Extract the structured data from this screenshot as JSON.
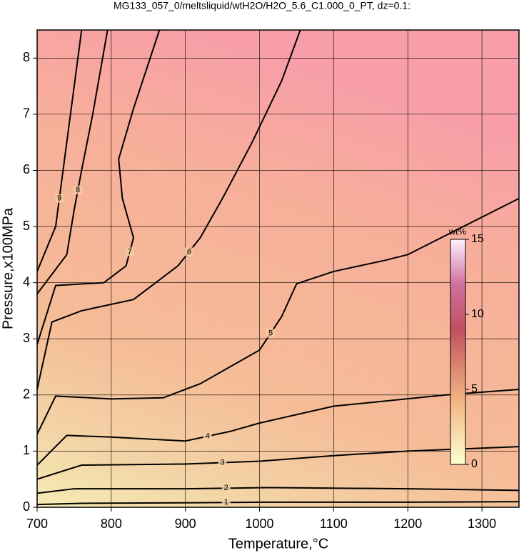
{
  "chart_data": {
    "type": "contour",
    "title": "MG133_057_0/meltsliquid/wtH2O/H2O_5.6_C1.000_0_PT, dz=0.1:",
    "x_label": "Temperature,°C",
    "y_label": "Pressure,x100MPa",
    "xlim": [
      700,
      1350
    ],
    "ylim": [
      0,
      8.5
    ],
    "xticks": [
      700,
      800,
      900,
      1000,
      1100,
      1200,
      1300
    ],
    "yticks": [
      0,
      1,
      2,
      3,
      4,
      5,
      6,
      7,
      8
    ],
    "grid": true,
    "line_color": "#000000",
    "contours": [
      {
        "level": 1,
        "x": [
          700,
          760,
          900,
          1010,
          1200,
          1350
        ],
        "y": [
          0.05,
          0.07,
          0.08,
          0.09,
          0.09,
          0.1
        ]
      },
      {
        "level": 2,
        "x": [
          700,
          750,
          900,
          1010,
          1200,
          1350
        ],
        "y": [
          0.25,
          0.33,
          0.33,
          0.35,
          0.33,
          0.3
        ]
      },
      {
        "level": 3,
        "x": [
          700,
          760,
          900,
          1000,
          1100,
          1200,
          1350
        ],
        "y": [
          0.5,
          0.75,
          0.77,
          0.82,
          0.92,
          1.0,
          1.08
        ]
      },
      {
        "level": 4,
        "x": [
          700,
          740,
          800,
          900,
          960,
          1000,
          1100,
          1250,
          1350
        ],
        "y": [
          0.75,
          1.28,
          1.25,
          1.18,
          1.35,
          1.5,
          1.8,
          2.0,
          2.1
        ]
      },
      {
        "level": 5,
        "x": [
          700,
          725,
          800,
          870,
          920,
          1000,
          1030,
          1050,
          1100,
          1170,
          1200,
          1350
        ],
        "y": [
          1.3,
          1.98,
          1.93,
          1.95,
          2.2,
          2.8,
          3.4,
          3.98,
          4.2,
          4.4,
          4.5,
          5.5
        ]
      },
      {
        "level": 6,
        "x": [
          700,
          720,
          760,
          830,
          890,
          920,
          950,
          990,
          1030,
          1055
        ],
        "y": [
          2.1,
          3.3,
          3.5,
          3.7,
          4.3,
          4.8,
          5.5,
          6.5,
          7.6,
          8.5
        ]
      },
      {
        "level": 7,
        "x": [
          700,
          725,
          790,
          820,
          830,
          815,
          810,
          830,
          865
        ],
        "y": [
          2.9,
          3.95,
          4.0,
          4.3,
          4.8,
          5.5,
          6.2,
          7.1,
          8.5
        ]
      },
      {
        "level": 8,
        "x": [
          700,
          740,
          750,
          760,
          775,
          795
        ],
        "y": [
          3.8,
          4.5,
          5.3,
          6.0,
          7.0,
          8.5
        ]
      },
      {
        "level": 9,
        "x": [
          700,
          725,
          735,
          745,
          760
        ],
        "y": [
          4.2,
          5.0,
          6.0,
          7.0,
          8.5
        ]
      }
    ],
    "colorbar": {
      "label": "wt%",
      "lim": [
        0,
        15
      ],
      "ticks": [
        0,
        5,
        10,
        15
      ]
    }
  }
}
